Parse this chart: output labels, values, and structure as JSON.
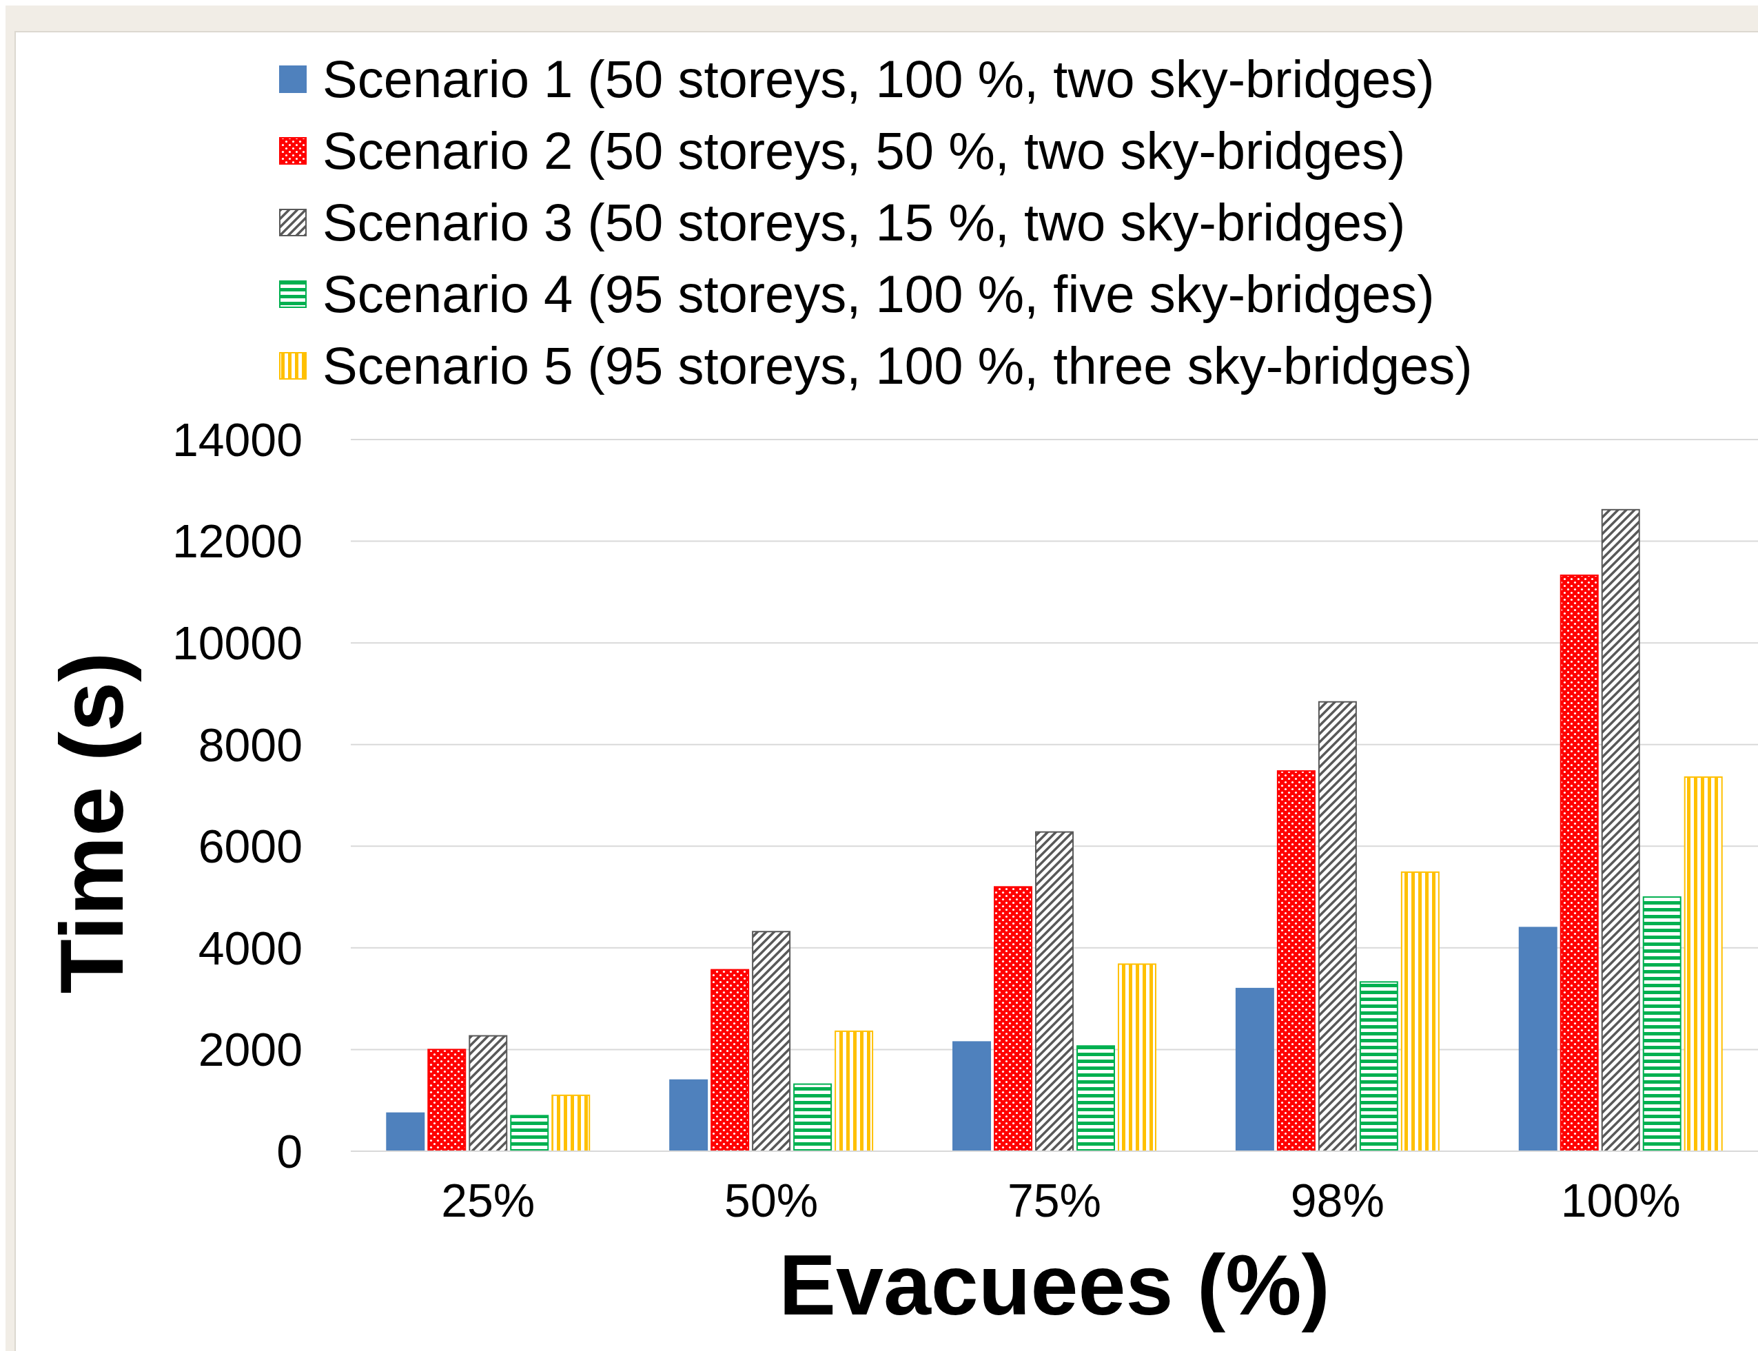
{
  "chart_data": {
    "type": "bar",
    "xlabel": "Evacuees (%)",
    "ylabel": "Time (s)",
    "categories": [
      "25%",
      "50%",
      "75%",
      "98%",
      "100%"
    ],
    "series": [
      {
        "name": "Scenario 1 (50 storeys, 100 %, two sky-bridges)",
        "color": "#4f81bd",
        "values": [
          750,
          1400,
          2150,
          3200,
          4400
        ]
      },
      {
        "name": "Scenario 2 (50 storeys, 50 %, two sky-bridges)",
        "color": "#ff0000",
        "values": [
          2000,
          3570,
          5200,
          7480,
          11330
        ]
      },
      {
        "name": "Scenario 3 (50 storeys, 15 %, two sky-bridges)",
        "color": "#595959",
        "values": [
          2270,
          4320,
          6280,
          8840,
          12620
        ]
      },
      {
        "name": "Scenario 4 (95 storeys, 100 %, five sky-bridges)",
        "color": "#00b050",
        "values": [
          700,
          1320,
          2070,
          3330,
          5000
        ]
      },
      {
        "name": "Scenario 5 (95 storeys, 100 %, three sky-bridges)",
        "color": "#ffc000",
        "values": [
          1100,
          2360,
          3680,
          5490,
          7360
        ]
      }
    ],
    "ylim": [
      0,
      14000
    ],
    "yticks": [
      0,
      2000,
      4000,
      6000,
      8000,
      10000,
      12000,
      14000
    ],
    "grid": "y",
    "legend": "top"
  }
}
